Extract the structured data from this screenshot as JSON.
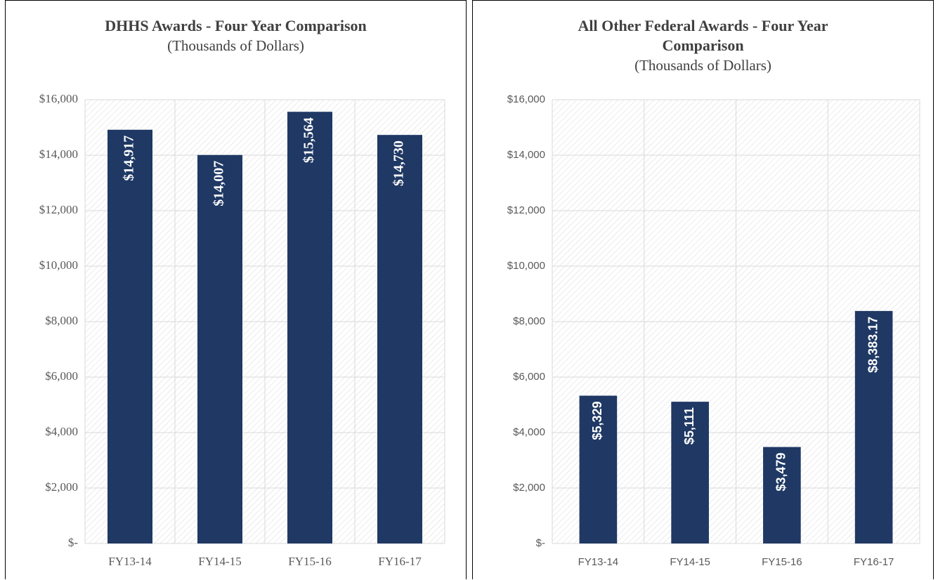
{
  "chart_data": [
    {
      "type": "bar",
      "title": "DHHS Awards - Four Year Comparison",
      "subtitle": "(Thousands of Dollars)",
      "categories": [
        "FY13-14",
        "FY14-15",
        "FY15-16",
        "FY16-17"
      ],
      "values": [
        14917,
        14007,
        15564,
        14730
      ],
      "value_labels": [
        "$14,917",
        "$14,007",
        "$15,564",
        "$14,730"
      ],
      "color": "#1f3864",
      "ylim": [
        0,
        16000
      ],
      "yticks": [
        {
          "value": 0,
          "label": "$-"
        },
        {
          "value": 2000,
          "label": "$2,000"
        },
        {
          "value": 4000,
          "label": "$4,000"
        },
        {
          "value": 6000,
          "label": "$6,000"
        },
        {
          "value": 8000,
          "label": "$8,000"
        },
        {
          "value": 10000,
          "label": "$10,000"
        },
        {
          "value": 12000,
          "label": "$12,000"
        },
        {
          "value": 14000,
          "label": "$14,000"
        },
        {
          "value": 16000,
          "label": "$16,000"
        }
      ],
      "grid": true
    },
    {
      "type": "bar",
      "title": "All Other Federal Awards - Four Year Comparison",
      "subtitle": "(Thousands of Dollars)",
      "categories": [
        "FY13-14",
        "FY14-15",
        "FY15-16",
        "FY16-17"
      ],
      "values": [
        5329,
        5111,
        3479,
        8383.17
      ],
      "value_labels": [
        "$5,329",
        "$5,111",
        "$3,479",
        "$8,383.17"
      ],
      "color": "#1f3864",
      "ylim": [
        0,
        16000
      ],
      "yticks": [
        {
          "value": 0,
          "label": "$-"
        },
        {
          "value": 2000,
          "label": "$2,000"
        },
        {
          "value": 4000,
          "label": "$4,000"
        },
        {
          "value": 6000,
          "label": "$6,000"
        },
        {
          "value": 8000,
          "label": "$8,000"
        },
        {
          "value": 10000,
          "label": "$10,000"
        },
        {
          "value": 12000,
          "label": "$12,000"
        },
        {
          "value": 14000,
          "label": "$14,000"
        },
        {
          "value": 16000,
          "label": "$16,000"
        }
      ],
      "grid": true
    }
  ]
}
